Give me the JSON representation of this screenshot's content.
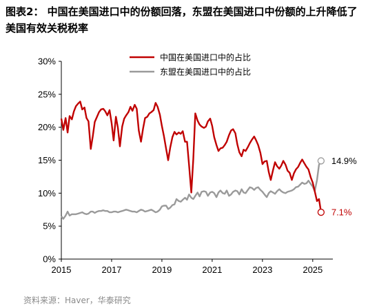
{
  "title": "图表2：  中国在美国进口中的份额回落，东盟在美国进口中份额的上升降低了美国有效关税税率",
  "source": "资料来源：Haver，华泰研究",
  "chart_data": {
    "type": "line",
    "xlim": [
      2015.0,
      2025.8
    ],
    "ylim": [
      0,
      30
    ],
    "x_ticks": [
      2015,
      2017,
      2019,
      2021,
      2023,
      2025
    ],
    "x_tick_labels": [
      "2015",
      "2017",
      "2019",
      "2021",
      "2023",
      "2025"
    ],
    "y_ticks": [
      0,
      5,
      10,
      15,
      20,
      25,
      30
    ],
    "y_tick_labels": [
      "0%",
      "5%",
      "10%",
      "15%",
      "20%",
      "25%",
      "30%"
    ],
    "legend_position": "top-center",
    "series": [
      {
        "name": "中国在美国进口中的占比",
        "color": "#c00000",
        "end_label": "7.1%",
        "points": [
          [
            2015.0,
            21.3
          ],
          [
            2015.08,
            19.6
          ],
          [
            2015.17,
            21.4
          ],
          [
            2015.25,
            19.2
          ],
          [
            2015.33,
            21.7
          ],
          [
            2015.42,
            21.2
          ],
          [
            2015.5,
            22.4
          ],
          [
            2015.58,
            23.2
          ],
          [
            2015.67,
            23.6
          ],
          [
            2015.75,
            23.9
          ],
          [
            2015.83,
            22.7
          ],
          [
            2015.92,
            23.0
          ],
          [
            2016.0,
            21.4
          ],
          [
            2016.08,
            20.9
          ],
          [
            2016.17,
            16.7
          ],
          [
            2016.25,
            18.6
          ],
          [
            2016.33,
            20.8
          ],
          [
            2016.42,
            21.6
          ],
          [
            2016.5,
            22.3
          ],
          [
            2016.58,
            22.7
          ],
          [
            2016.67,
            22.8
          ],
          [
            2016.75,
            22.4
          ],
          [
            2016.83,
            21.8
          ],
          [
            2016.92,
            22.6
          ],
          [
            2017.0,
            20.6
          ],
          [
            2017.08,
            18.0
          ],
          [
            2017.17,
            21.6
          ],
          [
            2017.25,
            19.9
          ],
          [
            2017.33,
            17.1
          ],
          [
            2017.42,
            20.1
          ],
          [
            2017.5,
            21.3
          ],
          [
            2017.58,
            21.8
          ],
          [
            2017.67,
            22.3
          ],
          [
            2017.75,
            23.1
          ],
          [
            2017.83,
            22.5
          ],
          [
            2017.92,
            23.4
          ],
          [
            2018.0,
            22.8
          ],
          [
            2018.08,
            19.5
          ],
          [
            2018.17,
            17.8
          ],
          [
            2018.25,
            19.8
          ],
          [
            2018.33,
            21.4
          ],
          [
            2018.42,
            21.6
          ],
          [
            2018.5,
            22.1
          ],
          [
            2018.58,
            22.3
          ],
          [
            2018.67,
            22.6
          ],
          [
            2018.75,
            23.7
          ],
          [
            2018.83,
            23.1
          ],
          [
            2018.92,
            21.9
          ],
          [
            2019.0,
            20.2
          ],
          [
            2019.08,
            18.7
          ],
          [
            2019.17,
            16.7
          ],
          [
            2019.25,
            15.0
          ],
          [
            2019.33,
            16.9
          ],
          [
            2019.42,
            18.5
          ],
          [
            2019.5,
            19.3
          ],
          [
            2019.58,
            18.9
          ],
          [
            2019.67,
            19.2
          ],
          [
            2019.75,
            19.0
          ],
          [
            2019.83,
            19.4
          ],
          [
            2019.92,
            17.8
          ],
          [
            2020.0,
            17.8
          ],
          [
            2020.08,
            14.3
          ],
          [
            2020.17,
            10.1
          ],
          [
            2020.25,
            15.2
          ],
          [
            2020.33,
            22.1
          ],
          [
            2020.42,
            21.0
          ],
          [
            2020.5,
            20.4
          ],
          [
            2020.58,
            20.1
          ],
          [
            2020.67,
            19.9
          ],
          [
            2020.75,
            20.1
          ],
          [
            2020.83,
            20.9
          ],
          [
            2020.92,
            21.3
          ],
          [
            2021.0,
            20.2
          ],
          [
            2021.08,
            18.5
          ],
          [
            2021.17,
            17.3
          ],
          [
            2021.25,
            16.4
          ],
          [
            2021.33,
            16.8
          ],
          [
            2021.42,
            16.9
          ],
          [
            2021.5,
            17.3
          ],
          [
            2021.58,
            17.8
          ],
          [
            2021.67,
            18.8
          ],
          [
            2021.75,
            19.5
          ],
          [
            2021.83,
            19.7
          ],
          [
            2021.92,
            19.1
          ],
          [
            2022.0,
            17.4
          ],
          [
            2022.08,
            16.2
          ],
          [
            2022.17,
            15.6
          ],
          [
            2022.25,
            16.6
          ],
          [
            2022.33,
            16.4
          ],
          [
            2022.42,
            17.0
          ],
          [
            2022.5,
            17.6
          ],
          [
            2022.58,
            18.1
          ],
          [
            2022.67,
            18.6
          ],
          [
            2022.75,
            18.0
          ],
          [
            2022.83,
            17.3
          ],
          [
            2022.92,
            16.1
          ],
          [
            2023.0,
            14.4
          ],
          [
            2023.08,
            14.8
          ],
          [
            2023.17,
            14.9
          ],
          [
            2023.25,
            13.2
          ],
          [
            2023.33,
            12.0
          ],
          [
            2023.42,
            13.5
          ],
          [
            2023.5,
            14.7
          ],
          [
            2023.58,
            14.1
          ],
          [
            2023.67,
            13.7
          ],
          [
            2023.75,
            14.2
          ],
          [
            2023.83,
            14.9
          ],
          [
            2023.92,
            14.3
          ],
          [
            2024.0,
            13.4
          ],
          [
            2024.08,
            13.1
          ],
          [
            2024.17,
            12.0
          ],
          [
            2024.25,
            13.0
          ],
          [
            2024.33,
            13.6
          ],
          [
            2024.42,
            14.0
          ],
          [
            2024.5,
            14.6
          ],
          [
            2024.58,
            15.1
          ],
          [
            2024.67,
            14.5
          ],
          [
            2024.75,
            14.0
          ],
          [
            2024.83,
            13.6
          ],
          [
            2024.92,
            12.4
          ],
          [
            2025.0,
            11.6
          ],
          [
            2025.08,
            10.3
          ],
          [
            2025.17,
            8.8
          ],
          [
            2025.25,
            9.1
          ],
          [
            2025.33,
            7.1
          ]
        ]
      },
      {
        "name": "东盟在美国进口中的占比",
        "color": "#9a9a9a",
        "end_label": "14.9%",
        "points": [
          [
            2015.0,
            6.5
          ],
          [
            2015.08,
            6.1
          ],
          [
            2015.17,
            6.6
          ],
          [
            2015.25,
            7.2
          ],
          [
            2015.33,
            6.6
          ],
          [
            2015.42,
            6.8
          ],
          [
            2015.5,
            6.8
          ],
          [
            2015.58,
            6.8
          ],
          [
            2015.67,
            6.9
          ],
          [
            2015.75,
            7.0
          ],
          [
            2015.83,
            7.1
          ],
          [
            2015.92,
            6.9
          ],
          [
            2016.0,
            6.8
          ],
          [
            2016.08,
            6.9
          ],
          [
            2016.17,
            7.2
          ],
          [
            2016.25,
            7.2
          ],
          [
            2016.33,
            7.0
          ],
          [
            2016.42,
            7.2
          ],
          [
            2016.5,
            7.3
          ],
          [
            2016.58,
            7.3
          ],
          [
            2016.67,
            7.4
          ],
          [
            2016.75,
            7.3
          ],
          [
            2016.83,
            7.3
          ],
          [
            2016.92,
            7.1
          ],
          [
            2017.0,
            7.1
          ],
          [
            2017.08,
            7.2
          ],
          [
            2017.17,
            7.2
          ],
          [
            2017.25,
            7.1
          ],
          [
            2017.33,
            7.2
          ],
          [
            2017.42,
            7.3
          ],
          [
            2017.5,
            7.4
          ],
          [
            2017.58,
            7.5
          ],
          [
            2017.67,
            7.4
          ],
          [
            2017.75,
            7.3
          ],
          [
            2017.83,
            7.2
          ],
          [
            2017.92,
            7.2
          ],
          [
            2018.0,
            7.1
          ],
          [
            2018.08,
            7.3
          ],
          [
            2018.17,
            7.5
          ],
          [
            2018.25,
            7.4
          ],
          [
            2018.33,
            7.2
          ],
          [
            2018.42,
            7.3
          ],
          [
            2018.5,
            7.4
          ],
          [
            2018.58,
            7.5
          ],
          [
            2018.67,
            7.3
          ],
          [
            2018.75,
            7.1
          ],
          [
            2018.83,
            7.2
          ],
          [
            2018.92,
            7.5
          ],
          [
            2019.0,
            8.0
          ],
          [
            2019.08,
            8.1
          ],
          [
            2019.17,
            8.1
          ],
          [
            2019.25,
            7.6
          ],
          [
            2019.33,
            7.8
          ],
          [
            2019.42,
            8.2
          ],
          [
            2019.5,
            8.3
          ],
          [
            2019.58,
            9.1
          ],
          [
            2019.67,
            8.8
          ],
          [
            2019.75,
            8.7
          ],
          [
            2019.83,
            9.0
          ],
          [
            2019.92,
            9.3
          ],
          [
            2020.0,
            9.0
          ],
          [
            2020.08,
            9.8
          ],
          [
            2020.17,
            9.3
          ],
          [
            2020.25,
            9.1
          ],
          [
            2020.33,
            9.6
          ],
          [
            2020.42,
            10.1
          ],
          [
            2020.5,
            9.5
          ],
          [
            2020.58,
            10.2
          ],
          [
            2020.67,
            10.3
          ],
          [
            2020.75,
            10.2
          ],
          [
            2020.83,
            9.6
          ],
          [
            2020.92,
            10.1
          ],
          [
            2021.0,
            10.2
          ],
          [
            2021.08,
            10.0
          ],
          [
            2021.17,
            9.4
          ],
          [
            2021.25,
            10.1
          ],
          [
            2021.33,
            10.4
          ],
          [
            2021.42,
            10.0
          ],
          [
            2021.5,
            9.9
          ],
          [
            2021.58,
            10.4
          ],
          [
            2021.67,
            9.6
          ],
          [
            2021.75,
            9.8
          ],
          [
            2021.83,
            10.2
          ],
          [
            2021.92,
            10.4
          ],
          [
            2022.0,
            10.3
          ],
          [
            2022.08,
            9.8
          ],
          [
            2022.17,
            10.6
          ],
          [
            2022.25,
            10.1
          ],
          [
            2022.33,
            10.0
          ],
          [
            2022.42,
            10.5
          ],
          [
            2022.5,
            10.9
          ],
          [
            2022.58,
            10.8
          ],
          [
            2022.67,
            10.5
          ],
          [
            2022.75,
            10.8
          ],
          [
            2022.83,
            10.9
          ],
          [
            2022.92,
            10.5
          ],
          [
            2023.0,
            10.2
          ],
          [
            2023.08,
            9.8
          ],
          [
            2023.17,
            9.4
          ],
          [
            2023.25,
            10.0
          ],
          [
            2023.33,
            10.3
          ],
          [
            2023.42,
            10.1
          ],
          [
            2023.5,
            9.9
          ],
          [
            2023.58,
            10.3
          ],
          [
            2023.67,
            10.6
          ],
          [
            2023.75,
            10.3
          ],
          [
            2023.83,
            10.1
          ],
          [
            2023.92,
            10.0
          ],
          [
            2024.0,
            10.2
          ],
          [
            2024.08,
            10.3
          ],
          [
            2024.17,
            10.4
          ],
          [
            2024.25,
            10.6
          ],
          [
            2024.33,
            10.9
          ],
          [
            2024.42,
            11.0
          ],
          [
            2024.5,
            11.3
          ],
          [
            2024.58,
            11.6
          ],
          [
            2024.67,
            11.4
          ],
          [
            2024.75,
            11.5
          ],
          [
            2024.83,
            11.9
          ],
          [
            2024.92,
            11.4
          ],
          [
            2025.0,
            11.0
          ],
          [
            2025.08,
            10.3
          ],
          [
            2025.17,
            12.0
          ],
          [
            2025.25,
            14.3
          ],
          [
            2025.33,
            14.9
          ]
        ]
      }
    ]
  }
}
